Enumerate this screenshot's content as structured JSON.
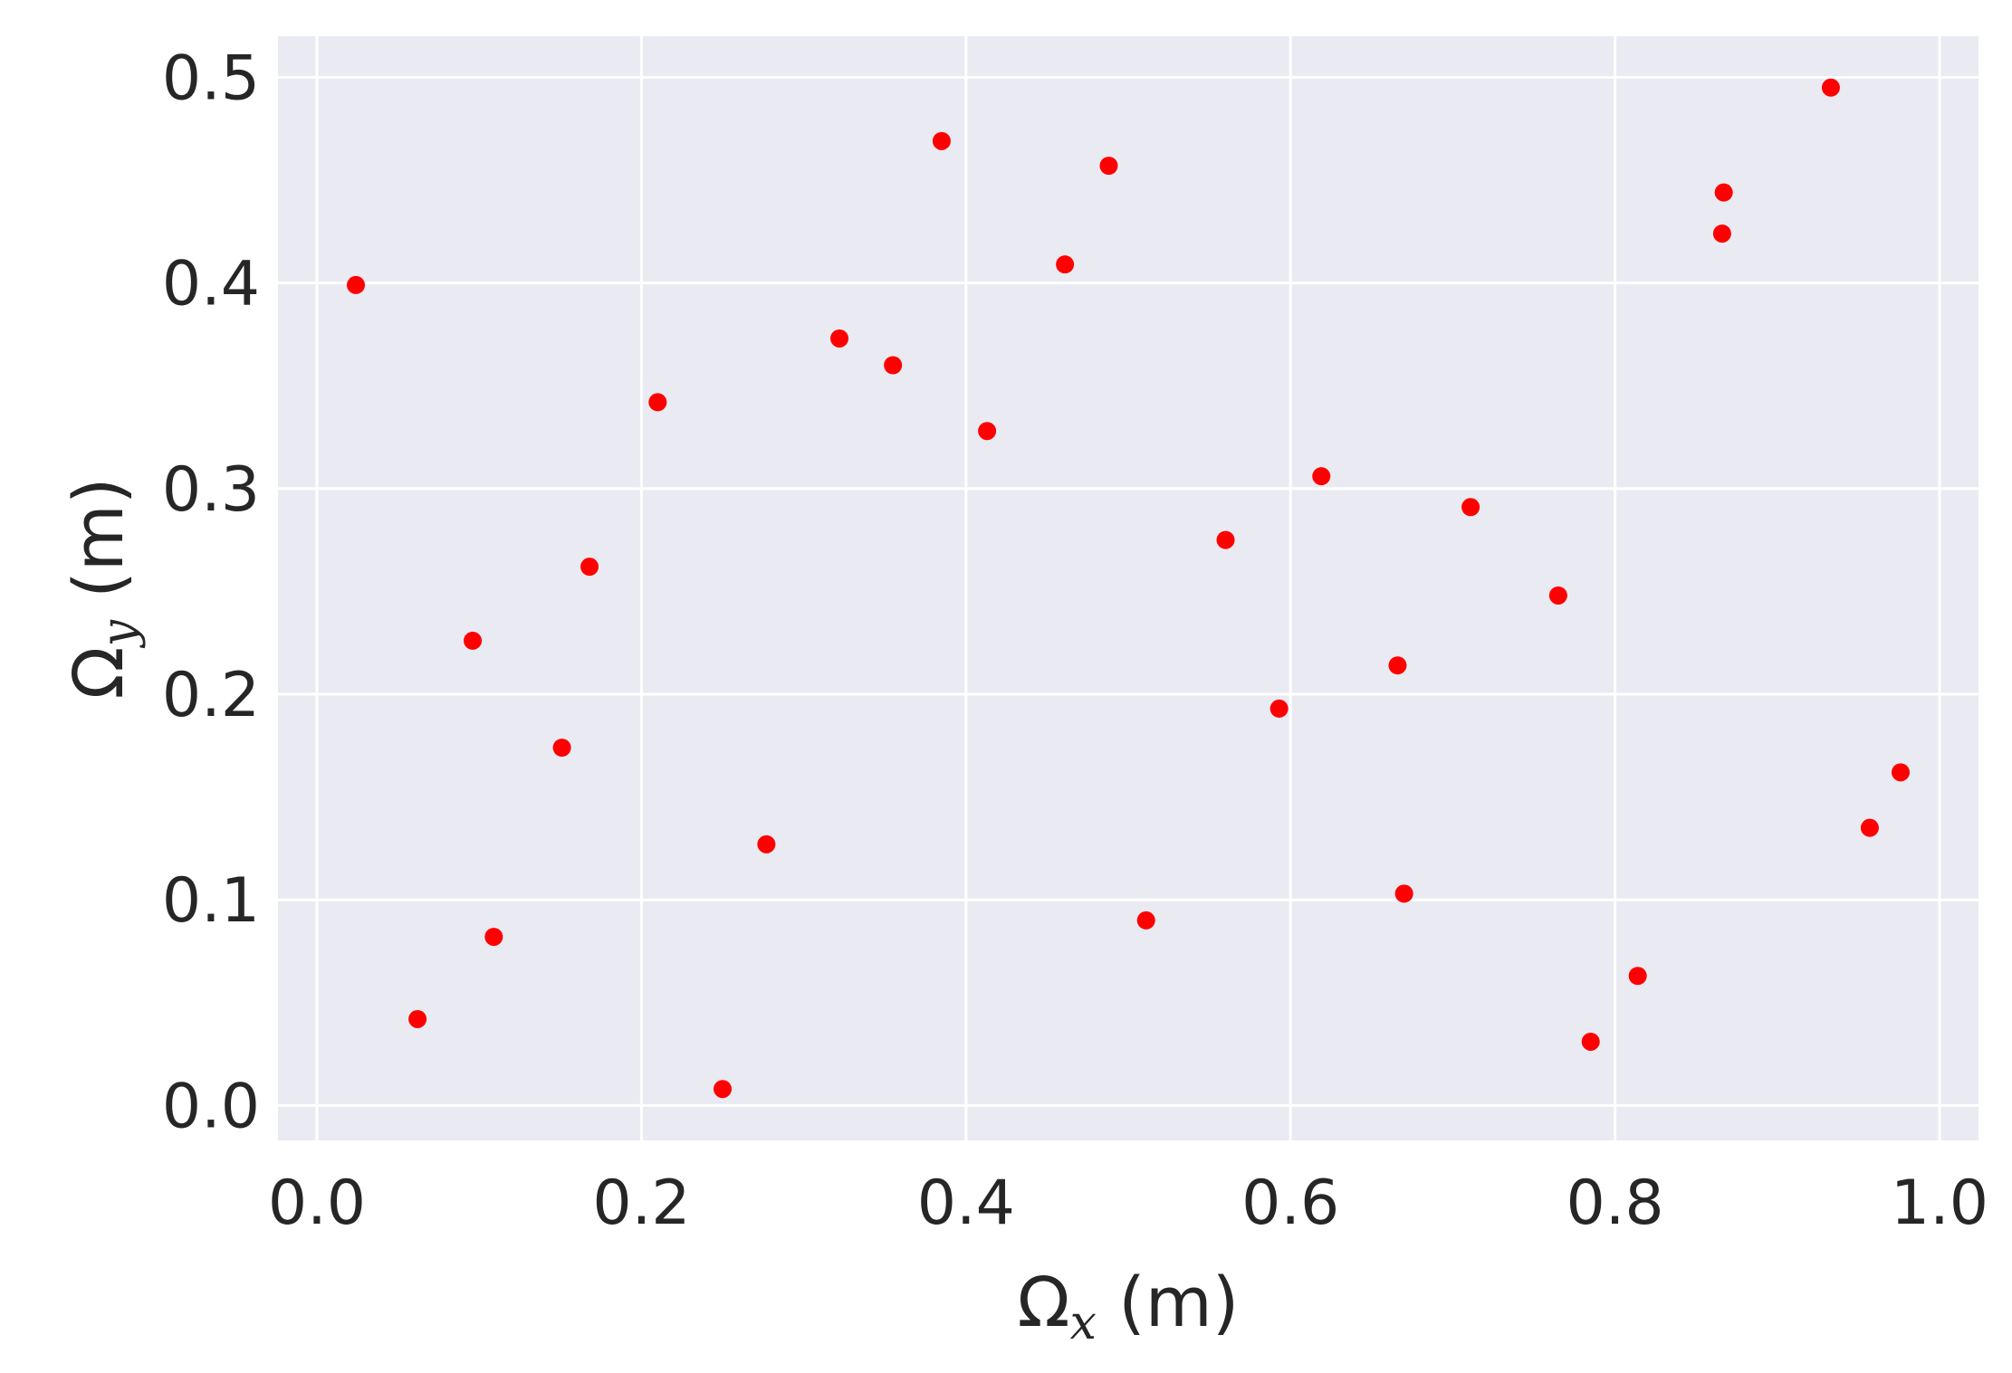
{
  "chart_data": {
    "type": "scatter",
    "title": "",
    "xlabel": {
      "symbol": "Ω",
      "sub": "x",
      "unit": " (m)"
    },
    "ylabel": {
      "symbol": "Ω",
      "sub": "y",
      "unit": " (m)"
    },
    "xlim": [
      -0.024,
      1.024
    ],
    "ylim": [
      -0.017,
      0.52
    ],
    "xticks": [
      0.0,
      0.2,
      0.4,
      0.6,
      0.8,
      1.0
    ],
    "xtick_labels": [
      "0.0",
      "0.2",
      "0.4",
      "0.6",
      "0.8",
      "1.0"
    ],
    "yticks": [
      0.0,
      0.1,
      0.2,
      0.3,
      0.4,
      0.5
    ],
    "ytick_labels": [
      "0.0",
      "0.1",
      "0.2",
      "0.3",
      "0.4",
      "0.5"
    ],
    "grid": true,
    "colors": {
      "background": "#eaeaf2",
      "grid": "#ffffff",
      "marker": "#ff0000",
      "text": "#262626"
    },
    "points": [
      {
        "x": 0.024,
        "y": 0.399
      },
      {
        "x": 0.062,
        "y": 0.042
      },
      {
        "x": 0.096,
        "y": 0.226
      },
      {
        "x": 0.109,
        "y": 0.082
      },
      {
        "x": 0.151,
        "y": 0.174
      },
      {
        "x": 0.168,
        "y": 0.262
      },
      {
        "x": 0.21,
        "y": 0.342
      },
      {
        "x": 0.25,
        "y": 0.008
      },
      {
        "x": 0.277,
        "y": 0.127
      },
      {
        "x": 0.322,
        "y": 0.373
      },
      {
        "x": 0.355,
        "y": 0.36
      },
      {
        "x": 0.385,
        "y": 0.469
      },
      {
        "x": 0.413,
        "y": 0.328
      },
      {
        "x": 0.461,
        "y": 0.409
      },
      {
        "x": 0.488,
        "y": 0.457
      },
      {
        "x": 0.511,
        "y": 0.09
      },
      {
        "x": 0.56,
        "y": 0.275
      },
      {
        "x": 0.593,
        "y": 0.193
      },
      {
        "x": 0.619,
        "y": 0.306
      },
      {
        "x": 0.666,
        "y": 0.214
      },
      {
        "x": 0.67,
        "y": 0.103
      },
      {
        "x": 0.711,
        "y": 0.291
      },
      {
        "x": 0.765,
        "y": 0.248
      },
      {
        "x": 0.785,
        "y": 0.031
      },
      {
        "x": 0.814,
        "y": 0.063
      },
      {
        "x": 0.866,
        "y": 0.424
      },
      {
        "x": 0.867,
        "y": 0.444
      },
      {
        "x": 0.933,
        "y": 0.495
      },
      {
        "x": 0.957,
        "y": 0.135
      },
      {
        "x": 0.976,
        "y": 0.162
      }
    ]
  }
}
